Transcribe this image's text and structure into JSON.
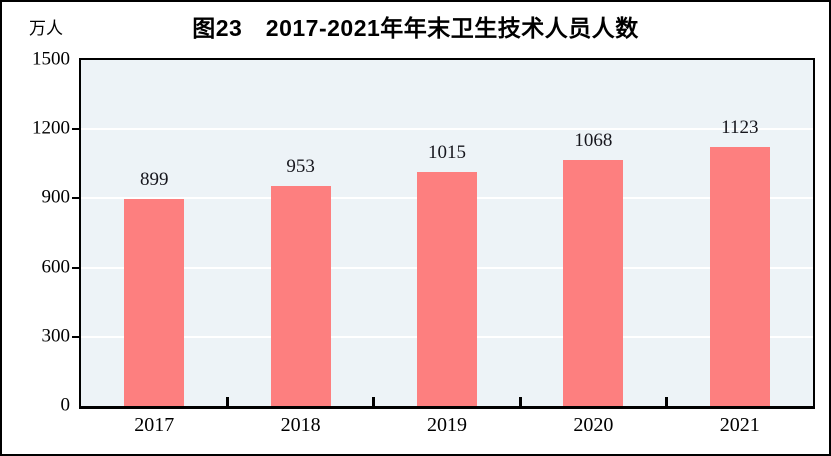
{
  "title": "图23　2017-2021年年末卫生技术人员人数",
  "chart_data": {
    "type": "bar",
    "title": "图23　2017-2021年年末卫生技术人员人数",
    "categories": [
      "2017",
      "2018",
      "2019",
      "2020",
      "2021"
    ],
    "values": [
      899,
      953,
      1015,
      1068,
      1123
    ],
    "value_labels": [
      "899",
      "953",
      "1015",
      "1068",
      "1123"
    ],
    "xlabel": "",
    "ylabel": "万人",
    "ylim": [
      0,
      1500
    ],
    "yticks": [
      0,
      300,
      600,
      900,
      1200,
      1500
    ],
    "grid": true,
    "legend": false,
    "bar_color": "#fd7f7f",
    "plot_background": "#edf3f7",
    "gridline_color": "#ffffff",
    "border_color": "#000000"
  }
}
